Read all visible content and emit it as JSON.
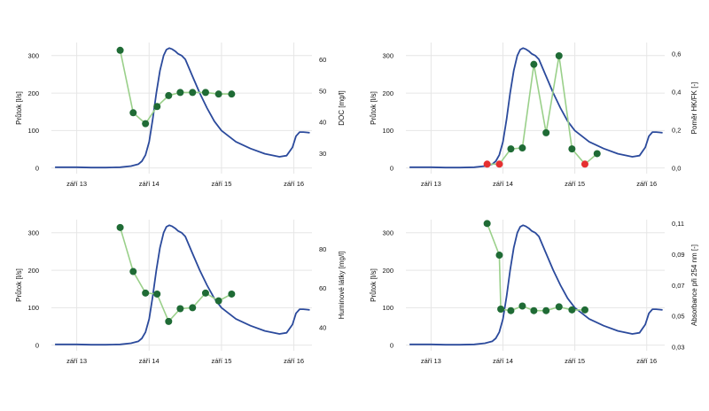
{
  "colors": {
    "flow": "#2b4a9c",
    "connector": "#9ad08a",
    "point": "#1f6b35",
    "point_alt": "#e53030",
    "grid": "#e6e6e6"
  },
  "chart_data": [
    {
      "type": "line",
      "x_ticks": [
        "září 13",
        "září 14",
        "září 15",
        "září 16"
      ],
      "xlim": [
        12.65,
        16.25
      ],
      "ylabel": "Průtok [l/s]",
      "ylim": [
        -15,
        335
      ],
      "y_ticks": [
        "0",
        "100",
        "200",
        "300"
      ],
      "y_tick_values": [
        0,
        100,
        200,
        300
      ],
      "y2label": "DOC [mg/l]",
      "y2lim": [
        23.5,
        65.5
      ],
      "y2_ticks": [
        "30",
        "40",
        "50",
        "60"
      ],
      "y2_tick_values": [
        30,
        40,
        50,
        60
      ],
      "flow": {
        "x": [
          12.7,
          13.0,
          13.2,
          13.4,
          13.6,
          13.75,
          13.85,
          13.9,
          13.95,
          14.0,
          14.05,
          14.1,
          14.15,
          14.2,
          14.24,
          14.28,
          14.32,
          14.36,
          14.4,
          14.45,
          14.5,
          14.6,
          14.7,
          14.8,
          14.9,
          15.0,
          15.2,
          15.4,
          15.6,
          15.8,
          15.9,
          15.98,
          16.03,
          16.08,
          16.13,
          16.18,
          16.22
        ],
        "y": [
          2,
          2,
          1,
          1,
          2,
          5,
          10,
          18,
          35,
          70,
          130,
          200,
          260,
          300,
          316,
          320,
          317,
          312,
          305,
          300,
          290,
          245,
          200,
          160,
          125,
          100,
          70,
          52,
          38,
          30,
          33,
          55,
          85,
          96,
          96,
          95,
          94
        ]
      },
      "samples": {
        "x": [
          13.6,
          13.78,
          13.95,
          14.11,
          14.27,
          14.43,
          14.6,
          14.78,
          14.96,
          15.14
        ],
        "y": [
          63,
          43,
          39.5,
          45,
          48.5,
          49.5,
          49.5,
          49.5,
          49,
          49
        ],
        "alt": [
          false,
          false,
          false,
          false,
          false,
          false,
          false,
          false,
          false,
          false
        ]
      }
    },
    {
      "type": "line",
      "x_ticks": [
        "září 13",
        "září 14",
        "září 15",
        "září 16"
      ],
      "xlim": [
        12.65,
        16.25
      ],
      "ylabel": "Průtok [l/s]",
      "ylim": [
        -15,
        335
      ],
      "y_ticks": [
        "0",
        "100",
        "200",
        "300"
      ],
      "y_tick_values": [
        0,
        100,
        200,
        300
      ],
      "y2label": "Poměr HK/FK [-]",
      "y2lim": [
        -0.03,
        0.66
      ],
      "y2_ticks": [
        "0,0",
        "0,2",
        "0,4",
        "0,6"
      ],
      "y2_tick_values": [
        0,
        0.2,
        0.4,
        0.6
      ],
      "flow": {
        "x": [
          12.7,
          13.0,
          13.2,
          13.4,
          13.6,
          13.75,
          13.85,
          13.9,
          13.95,
          14.0,
          14.05,
          14.1,
          14.15,
          14.2,
          14.24,
          14.28,
          14.32,
          14.36,
          14.4,
          14.45,
          14.5,
          14.6,
          14.7,
          14.8,
          14.9,
          15.0,
          15.2,
          15.4,
          15.6,
          15.8,
          15.9,
          15.98,
          16.03,
          16.08,
          16.13,
          16.18,
          16.22
        ],
        "y": [
          2,
          2,
          1,
          1,
          2,
          5,
          10,
          18,
          35,
          70,
          130,
          200,
          260,
          300,
          316,
          320,
          317,
          312,
          305,
          300,
          290,
          245,
          200,
          160,
          125,
          100,
          70,
          52,
          38,
          30,
          33,
          55,
          85,
          96,
          96,
          95,
          94
        ]
      },
      "samples": {
        "x": [
          13.78,
          13.95,
          14.11,
          14.27,
          14.43,
          14.6,
          14.78,
          14.96,
          15.14,
          15.31
        ],
        "y": [
          0.02,
          0.02,
          0.1,
          0.105,
          0.545,
          0.185,
          0.59,
          0.1,
          0.02,
          0.075
        ],
        "alt": [
          true,
          true,
          false,
          false,
          false,
          false,
          false,
          false,
          true,
          false
        ]
      }
    },
    {
      "type": "line",
      "x_ticks": [
        "září 13",
        "září 14",
        "září 15",
        "září 16"
      ],
      "xlim": [
        12.65,
        16.25
      ],
      "ylabel": "Průtok [l/s]",
      "ylim": [
        -15,
        335
      ],
      "y_ticks": [
        "0",
        "100",
        "200",
        "300"
      ],
      "y_tick_values": [
        0,
        100,
        200,
        300
      ],
      "y2label": "Huminové látky [mg/l]",
      "y2lim": [
        28,
        95
      ],
      "y2_ticks": [
        "40",
        "60",
        "80"
      ],
      "y2_tick_values": [
        40,
        60,
        80
      ],
      "flow": {
        "x": [
          12.7,
          13.0,
          13.2,
          13.4,
          13.6,
          13.75,
          13.85,
          13.9,
          13.95,
          14.0,
          14.05,
          14.1,
          14.15,
          14.2,
          14.24,
          14.28,
          14.32,
          14.36,
          14.4,
          14.45,
          14.5,
          14.6,
          14.7,
          14.8,
          14.9,
          15.0,
          15.2,
          15.4,
          15.6,
          15.8,
          15.9,
          15.98,
          16.03,
          16.08,
          16.13,
          16.18,
          16.22
        ],
        "y": [
          2,
          2,
          1,
          1,
          2,
          5,
          10,
          18,
          35,
          70,
          130,
          200,
          260,
          300,
          316,
          320,
          317,
          312,
          305,
          300,
          290,
          245,
          200,
          160,
          125,
          100,
          70,
          52,
          38,
          30,
          33,
          55,
          85,
          96,
          96,
          95,
          94
        ]
      },
      "samples": {
        "x": [
          13.6,
          13.78,
          13.95,
          14.11,
          14.27,
          14.43,
          14.6,
          14.78,
          14.96,
          15.14
        ],
        "y": [
          91,
          68.5,
          57.5,
          57,
          43,
          49.5,
          50,
          57.5,
          53.5,
          57
        ],
        "alt": [
          false,
          false,
          false,
          false,
          false,
          false,
          false,
          false,
          false,
          false
        ]
      }
    },
    {
      "type": "line",
      "x_ticks": [
        "září 13",
        "září 14",
        "září 15",
        "září 16"
      ],
      "xlim": [
        12.65,
        16.25
      ],
      "ylabel": "Průtok [l/s]",
      "ylim": [
        -15,
        335
      ],
      "y_ticks": [
        "0",
        "100",
        "200",
        "300"
      ],
      "y_tick_values": [
        0,
        100,
        200,
        300
      ],
      "y2label": "Absorbance při 254 nm [-]",
      "y2lim": [
        0.0275,
        0.1125
      ],
      "y2_ticks": [
        "0,03",
        "0,05",
        "0,07",
        "0,09",
        "0,11"
      ],
      "y2_tick_values": [
        0.03,
        0.05,
        0.07,
        0.09,
        0.11
      ],
      "flow": {
        "x": [
          12.7,
          13.0,
          13.2,
          13.4,
          13.6,
          13.75,
          13.85,
          13.9,
          13.95,
          14.0,
          14.05,
          14.1,
          14.15,
          14.2,
          14.24,
          14.28,
          14.32,
          14.36,
          14.4,
          14.45,
          14.5,
          14.6,
          14.7,
          14.8,
          14.9,
          15.0,
          15.2,
          15.4,
          15.6,
          15.8,
          15.9,
          15.98,
          16.03,
          16.08,
          16.13,
          16.18,
          16.22
        ],
        "y": [
          2,
          2,
          1,
          1,
          2,
          5,
          10,
          18,
          35,
          70,
          130,
          200,
          260,
          300,
          316,
          320,
          317,
          312,
          305,
          300,
          290,
          245,
          200,
          160,
          125,
          100,
          70,
          52,
          38,
          30,
          33,
          55,
          85,
          96,
          96,
          95,
          94
        ]
      },
      "samples": {
        "x": [
          13.78,
          13.95,
          13.97,
          14.11,
          14.27,
          14.43,
          14.6,
          14.78,
          14.96,
          15.14
        ],
        "y": [
          0.11,
          0.0895,
          0.0545,
          0.0535,
          0.0565,
          0.0535,
          0.0535,
          0.056,
          0.054,
          0.054
        ],
        "alt": [
          false,
          false,
          false,
          false,
          false,
          false,
          false,
          false,
          false,
          false
        ]
      }
    }
  ]
}
